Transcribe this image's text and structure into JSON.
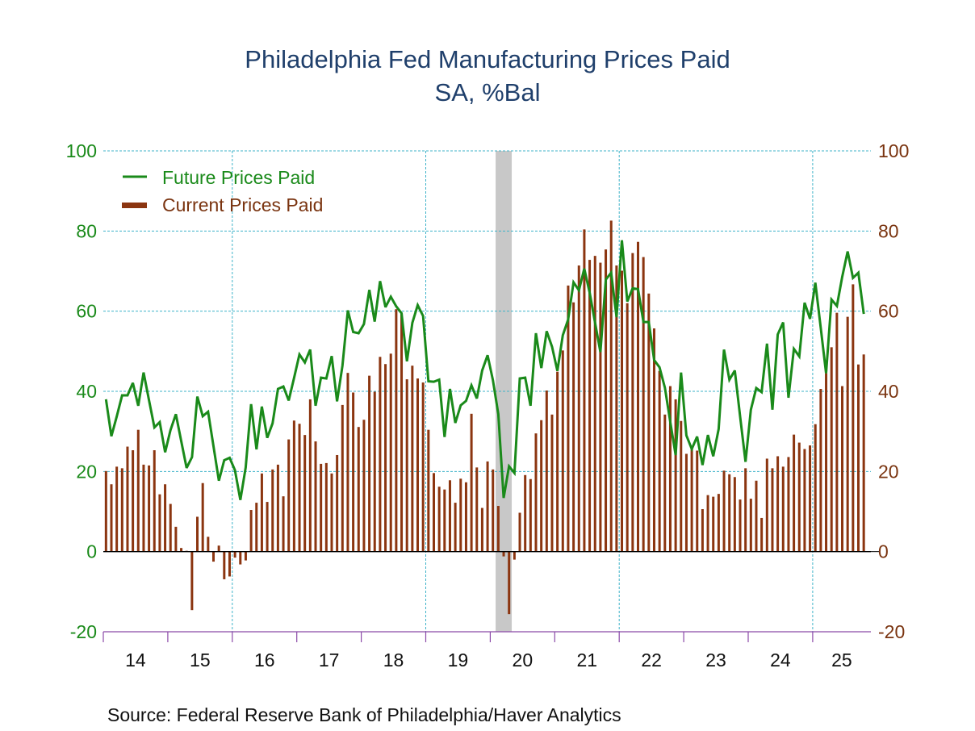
{
  "chart_data": {
    "type": "bar+line",
    "title": "Philadelphia Fed Manufacturing Prices Paid",
    "subtitle": "SA, %Bal",
    "source": "Source:  Federal Reserve Bank of Philadelphia/Haver Analytics",
    "xlabel": "",
    "ylabel_left": "",
    "ylabel_right": "",
    "ylim": [
      -20,
      100
    ],
    "yticks": [
      "100",
      "80",
      "60",
      "40",
      "20",
      "0",
      "-20"
    ],
    "ytick_values": [
      100,
      80,
      60,
      40,
      20,
      0,
      -20
    ],
    "xticks": [
      "14",
      "15",
      "16",
      "17",
      "18",
      "19",
      "20",
      "21",
      "22",
      "23",
      "24",
      "25"
    ],
    "x_start": "2014-01",
    "x_end": "2025-10",
    "frequency": "monthly",
    "grid": true,
    "vertical_gridlines_at_years": [
      2016,
      2019,
      2022,
      2025
    ],
    "legend_position": "top-left",
    "recession_shading": {
      "start": "2020-02",
      "end": "2020-04"
    },
    "colors": {
      "future": "#1a8a1a",
      "current": "#8b3510",
      "title": "#1f3f6b",
      "grid": "#3fb3c9",
      "axis": "#8b4aa8",
      "recession": "#c8c8c8"
    },
    "series": [
      {
        "name": "Future Prices Paid",
        "type": "line",
        "values": [
          38.0,
          28.8,
          33.7,
          39.0,
          39.0,
          42.1,
          36.4,
          44.7,
          37.8,
          31.0,
          32.3,
          24.8,
          30.3,
          34.3,
          27.6,
          20.9,
          23.6,
          38.7,
          33.8,
          34.9,
          26.3,
          17.7,
          22.8,
          23.4,
          20.3,
          12.9,
          21.0,
          36.8,
          25.5,
          36.2,
          28.4,
          32.0,
          40.6,
          41.2,
          37.7,
          43.4,
          49.2,
          47.2,
          50.4,
          36.4,
          43.4,
          43.2,
          48.8,
          37.5,
          46.4,
          60.2,
          54.8,
          54.5,
          56.8,
          65.3,
          57.4,
          67.5,
          61.0,
          63.6,
          61.2,
          59.5,
          47.5,
          57.1,
          61.5,
          58.8,
          42.5,
          42.4,
          42.9,
          28.6,
          40.6,
          32.1,
          36.5,
          37.6,
          41.5,
          38.2,
          45.2,
          49.0,
          42.8,
          34.3,
          13.4,
          21.3,
          19.6,
          43.2,
          43.4,
          36.4,
          54.5,
          45.8,
          55.0,
          51.1,
          45.1,
          54.0,
          57.9,
          67.2,
          65.2,
          70.6,
          64.6,
          57.2,
          49.8,
          67.9,
          69.6,
          58.5,
          77.7,
          62.4,
          65.7,
          65.5,
          57.3,
          57.3,
          47.8,
          46.0,
          40.9,
          32.3,
          24.1,
          44.7,
          29.0,
          25.6,
          28.7,
          21.6,
          29.1,
          23.8,
          30.6,
          50.4,
          42.9,
          45.2,
          33.7,
          22.4,
          35.4,
          40.8,
          39.8,
          51.9,
          35.4,
          54.2,
          57.2,
          38.4,
          50.6,
          48.7,
          62.1,
          58.1,
          67.1,
          55.8,
          44.5,
          62.9,
          61.3,
          68.6,
          74.9,
          68.3,
          69.6,
          59.3
        ]
      },
      {
        "name": "Current Prices Paid",
        "type": "bar",
        "values": [
          20.1,
          16.8,
          21.2,
          20.8,
          26.2,
          25.3,
          30.4,
          21.7,
          21.5,
          25.3,
          14.3,
          16.8,
          11.9,
          6.2,
          0.9,
          0.2,
          -14.6,
          8.7,
          17.1,
          3.7,
          -2.5,
          1.5,
          -6.9,
          -6.2,
          -1.5,
          -3.2,
          -2.2,
          10.4,
          12.2,
          19.5,
          12.4,
          20.5,
          21.7,
          13.8,
          28.0,
          32.7,
          31.9,
          29.1,
          38.0,
          27.5,
          21.9,
          22.1,
          19.5,
          24.1,
          36.6,
          44.6,
          39.7,
          31.1,
          32.9,
          43.9,
          39.9,
          48.6,
          46.8,
          49.4,
          60.5,
          59.5,
          43.0,
          46.4,
          43.2,
          42.2,
          30.4,
          19.6,
          16.2,
          15.5,
          17.8,
          12.2,
          18.2,
          17.3,
          34.4,
          21.0,
          10.9,
          22.5,
          20.5,
          11.4,
          -1.2,
          -15.6,
          -2.0,
          9.7,
          19.1,
          18.1,
          29.5,
          32.8,
          40.2,
          34.2,
          44.9,
          50.2,
          66.4,
          62.2,
          71.4,
          80.4,
          72.8,
          73.8,
          72.1,
          75.4,
          82.6,
          71.4,
          70.1,
          62.0,
          74.5,
          77.3,
          73.5,
          64.4,
          55.7,
          45.1,
          34.2,
          41.3,
          38.0,
          32.6,
          24.4,
          25.8,
          25.2,
          10.6,
          14.1,
          13.7,
          14.4,
          20.2,
          19.3,
          18.6,
          13.0,
          20.8,
          13.2,
          17.7,
          8.4,
          23.2,
          20.8,
          23.8,
          21.2,
          23.6,
          29.2,
          27.2,
          25.6,
          26.5,
          31.8,
          40.6,
          44.5,
          51.0,
          59.6,
          41.3,
          58.6,
          66.7,
          46.7,
          49.2
        ]
      }
    ]
  }
}
